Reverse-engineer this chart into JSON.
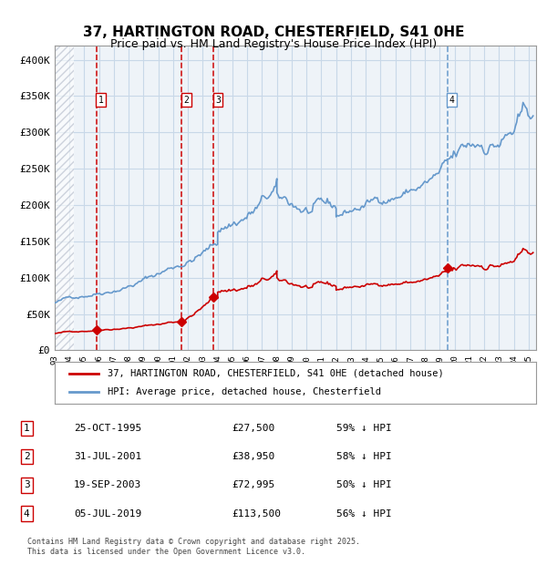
{
  "title_line1": "37, HARTINGTON ROAD, CHESTERFIELD, S41 0HE",
  "title_line2": "Price paid vs. HM Land Registry's House Price Index (HPI)",
  "xlim_start": 1993.0,
  "xlim_end": 2025.5,
  "ylim": [
    0,
    420000
  ],
  "yticks": [
    0,
    50000,
    100000,
    150000,
    200000,
    250000,
    300000,
    350000,
    400000
  ],
  "ytick_labels": [
    "£0",
    "£50K",
    "£100K",
    "£150K",
    "£200K",
    "£250K",
    "£300K",
    "£350K",
    "£400K"
  ],
  "purchases": [
    {
      "date_num": 1995.82,
      "price": 27500,
      "label": "1"
    },
    {
      "date_num": 2001.58,
      "price": 38950,
      "label": "2"
    },
    {
      "date_num": 2003.72,
      "price": 72995,
      "label": "3"
    },
    {
      "date_num": 2019.51,
      "price": 113500,
      "label": "4"
    }
  ],
  "purchase_vline_colors": [
    "#cc0000",
    "#cc0000",
    "#cc0000",
    "#6699cc"
  ],
  "hpi_color": "#6699cc",
  "price_color": "#cc0000",
  "grid_color": "#c8d8e8",
  "bg_color": "#eef3f8",
  "legend_entries": [
    "37, HARTINGTON ROAD, CHESTERFIELD, S41 0HE (detached house)",
    "HPI: Average price, detached house, Chesterfield"
  ],
  "table_rows": [
    [
      "1",
      "25-OCT-1995",
      "£27,500",
      "59% ↓ HPI"
    ],
    [
      "2",
      "31-JUL-2001",
      "£38,950",
      "58% ↓ HPI"
    ],
    [
      "3",
      "19-SEP-2003",
      "£72,995",
      "50% ↓ HPI"
    ],
    [
      "4",
      "05-JUL-2019",
      "£113,500",
      "56% ↓ HPI"
    ]
  ],
  "footnote": "Contains HM Land Registry data © Crown copyright and database right 2025.\nThis data is licensed under the Open Government Licence v3.0."
}
